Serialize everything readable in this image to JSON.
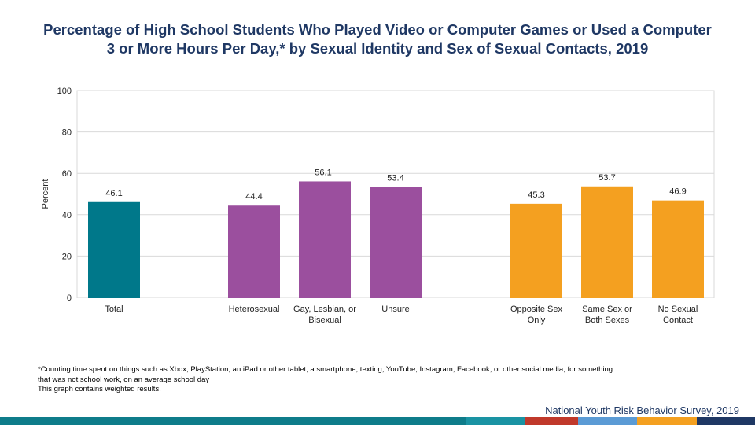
{
  "header": {
    "title_line1": "Percentage of High School Students Who Played Video or Computer Games or Used a Computer",
    "title_line2": "3 or More Hours Per Day,* by Sexual Identity and Sex of Sexual Contacts, 2019"
  },
  "chart_data": {
    "type": "bar",
    "title": "Percentage of High School Students Who Played Video or Computer Games or Used a Computer 3 or More Hours Per Day,* by Sexual Identity and Sex of Sexual Contacts, 2019",
    "xlabel": "",
    "ylabel": "Percent",
    "ylim": [
      0,
      100
    ],
    "yticks": [
      0,
      20,
      40,
      60,
      80,
      100
    ],
    "grid": true,
    "categories": [
      {
        "label_lines": [
          "Total"
        ],
        "value": 46.1,
        "value_label": "46.1",
        "group": "total"
      },
      {
        "label_lines": [
          "Heterosexual"
        ],
        "value": 44.4,
        "value_label": "44.4",
        "group": "identity"
      },
      {
        "label_lines": [
          "Gay, Lesbian, or",
          "Bisexual"
        ],
        "value": 56.1,
        "value_label": "56.1",
        "group": "identity"
      },
      {
        "label_lines": [
          "Unsure"
        ],
        "value": 53.4,
        "value_label": "53.4",
        "group": "identity"
      },
      {
        "label_lines": [
          "Opposite Sex",
          "Only"
        ],
        "value": 45.3,
        "value_label": "45.3",
        "group": "contacts"
      },
      {
        "label_lines": [
          "Same Sex or",
          "Both Sexes"
        ],
        "value": 53.7,
        "value_label": "53.7",
        "group": "contacts"
      },
      {
        "label_lines": [
          "No Sexual",
          "Contact"
        ],
        "value": 46.9,
        "value_label": "46.9",
        "group": "contacts"
      }
    ],
    "colors": {
      "total": "#00788a",
      "identity": "#9b4f9e",
      "contacts": "#f4a020"
    }
  },
  "footnotes": {
    "line1": "*Counting time spent on things such as Xbox, PlayStation, an iPad or other tablet, a smartphone, texting, YouTube, Instagram, Facebook, or other social media, for something",
    "line2": "that was not school work, on an average school day",
    "line3": "This graph contains weighted results."
  },
  "source": "National Youth Risk Behavior Survey, 2019",
  "bottom_bar_colors": [
    "#0e7c8a",
    "#1a93a3",
    "#c0392b",
    "#5b9bd5",
    "#f4a020",
    "#1f3864"
  ]
}
